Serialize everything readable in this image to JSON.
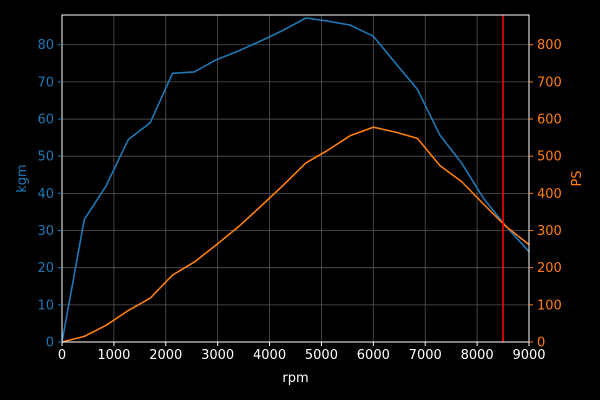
{
  "chart_data": {
    "type": "line",
    "x_axis": {
      "label": "rpm",
      "range": [
        0,
        9000
      ],
      "ticks": [
        0,
        1000,
        2000,
        3000,
        4000,
        5000,
        6000,
        7000,
        8000,
        9000
      ],
      "tick_labels": [
        "0",
        "1000",
        "2000",
        "3000",
        "4000",
        "5000",
        "6000",
        "7000",
        "8000",
        "9000"
      ]
    },
    "y_axis_left": {
      "label": "kgm",
      "range": [
        0,
        88
      ],
      "ticks": [
        0,
        10,
        20,
        30,
        40,
        50,
        60,
        70,
        80
      ],
      "tick_labels": [
        "0",
        "10",
        "20",
        "30",
        "40",
        "50",
        "60",
        "70",
        "80"
      ],
      "color": "#1f77b4"
    },
    "y_axis_right": {
      "label": "PS",
      "range": [
        0,
        880
      ],
      "ticks": [
        0,
        100,
        200,
        300,
        400,
        500,
        600,
        700,
        800
      ],
      "tick_labels": [
        "0",
        "100",
        "200",
        "300",
        "400",
        "500",
        "600",
        "700",
        "800"
      ],
      "color": "#ff7f0e"
    },
    "grid": true,
    "series": [
      {
        "axis": "left",
        "color": "#1f77b4",
        "points": [
          [
            0,
            0
          ],
          [
            430,
            33
          ],
          [
            850,
            42
          ],
          [
            1280,
            54.5
          ],
          [
            1700,
            59
          ],
          [
            2130,
            72.3
          ],
          [
            2550,
            72.7
          ],
          [
            2980,
            76
          ],
          [
            3400,
            78.3
          ],
          [
            3830,
            81
          ],
          [
            4250,
            83.8
          ],
          [
            4700,
            87.2
          ],
          [
            5100,
            86.4
          ],
          [
            5550,
            85.3
          ],
          [
            6000,
            82.3
          ],
          [
            6430,
            75
          ],
          [
            6850,
            68
          ],
          [
            7280,
            55.7
          ],
          [
            7700,
            48.2
          ],
          [
            8130,
            38.5
          ],
          [
            8550,
            31.3
          ],
          [
            9000,
            24.3
          ]
        ]
      },
      {
        "axis": "right",
        "color": "#ff7f0e",
        "points": [
          [
            0,
            0
          ],
          [
            430,
            15
          ],
          [
            850,
            45
          ],
          [
            1280,
            85
          ],
          [
            1700,
            118
          ],
          [
            2130,
            180
          ],
          [
            2550,
            215
          ],
          [
            2980,
            262
          ],
          [
            3400,
            310
          ],
          [
            3830,
            365
          ],
          [
            4250,
            420
          ],
          [
            4700,
            482
          ],
          [
            5100,
            514
          ],
          [
            5550,
            555
          ],
          [
            6000,
            578
          ],
          [
            6430,
            565
          ],
          [
            6850,
            548
          ],
          [
            7280,
            475
          ],
          [
            7700,
            432
          ],
          [
            8130,
            370
          ],
          [
            8550,
            312
          ],
          [
            9000,
            262
          ]
        ]
      }
    ],
    "markers": [
      {
        "type": "vertical-line",
        "x": 8500,
        "color": "#ff0000"
      }
    ]
  },
  "colors": {
    "background": "#000000",
    "axis": "#ffffff",
    "grid": "#555555"
  }
}
